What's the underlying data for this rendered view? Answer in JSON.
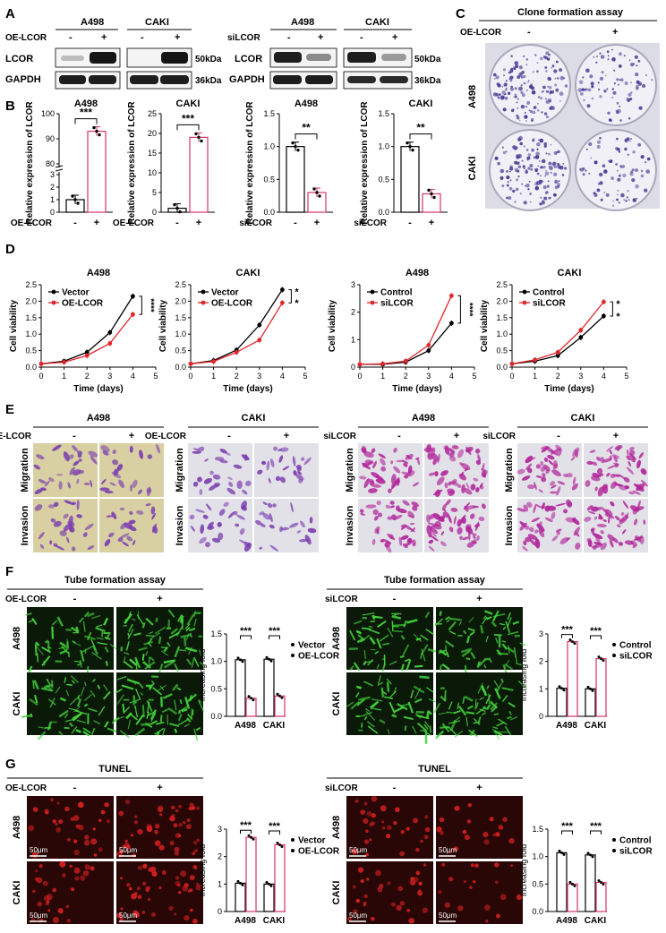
{
  "panel_letters": {
    "A": "A",
    "B": "B",
    "C": "C",
    "D": "D",
    "E": "E",
    "F": "F",
    "G": "G"
  },
  "panelA": {
    "left": {
      "cells": [
        "A498",
        "CAKI"
      ],
      "treatment": "OE-LCOR",
      "signs": [
        "-",
        "+",
        "-",
        "+"
      ],
      "rows": [
        "LCOR",
        "GAPDH"
      ],
      "sizes": [
        "50kDa",
        "36kDa"
      ]
    },
    "right": {
      "cells": [
        "A498",
        "CAKI"
      ],
      "treatment": "siLCOR",
      "signs": [
        "-",
        "+",
        "-",
        "+"
      ],
      "rows": [
        "LCOR",
        "GAPDH"
      ],
      "sizes": [
        "50kDa",
        "36kDa"
      ]
    }
  },
  "panelC": {
    "title": "Clone formation assay",
    "treatment": "OE-LCOR",
    "signs": [
      "-",
      "+"
    ],
    "rows": [
      "A498",
      "CAKI"
    ]
  },
  "panelE": {
    "groups": [
      {
        "cell": "A498",
        "treatment": "OE-LCOR",
        "signs": [
          "-",
          "+"
        ],
        "rows": [
          "Migration",
          "Invasion"
        ],
        "stain": "yellow"
      },
      {
        "cell": "CAKI",
        "treatment": "OE-LCOR",
        "signs": [
          "-",
          "+"
        ],
        "rows": [
          "Migration",
          "Invasion"
        ],
        "stain": "grey"
      },
      {
        "cell": "A498",
        "treatment": "siLCOR",
        "signs": [
          "-",
          "+"
        ],
        "rows": [
          "Migration",
          "Invasion"
        ],
        "stain": "grey"
      },
      {
        "cell": "CAKI",
        "treatment": "siLCOR",
        "signs": [
          "-",
          "+"
        ],
        "rows": [
          "Migration",
          "Invasion"
        ],
        "stain": "grey"
      }
    ]
  },
  "panelF": {
    "left": {
      "title": "Tube formation assay",
      "treatment": "OE-LCOR",
      "signs": [
        "-",
        "+"
      ],
      "rows": [
        "A498",
        "CAKI"
      ]
    },
    "right": {
      "title": "Tube formation assay",
      "treatment": "siLCOR",
      "signs": [
        "-",
        "+"
      ],
      "rows": [
        "A498",
        "CAKI"
      ]
    }
  },
  "panelG": {
    "left": {
      "title": "TUNEL",
      "treatment": "OE-LCOR",
      "signs": [
        "-",
        "+"
      ],
      "rows": [
        "A498",
        "CAKI"
      ],
      "scale": "50μm"
    },
    "right": {
      "title": "TUNEL",
      "treatment": "siLCOR",
      "signs": [
        "-",
        "+"
      ],
      "rows": [
        "A498",
        "CAKI"
      ],
      "scale": "50μm"
    }
  },
  "colors": {
    "control": "#000000",
    "treated": "#d6336c",
    "line_treated": "#e0262b",
    "green": "#43d43c",
    "red": "#d42020",
    "stain_purple": "#7b3fb0",
    "magenta": "#b0269a"
  },
  "chart_data": [
    {
      "id": "B1",
      "type": "bar",
      "title": "A498",
      "ylabel": "Relative expression of LCOR",
      "xlabel": "OE-LCOR",
      "categories": [
        "-",
        "+"
      ],
      "values": [
        1,
        93
      ],
      "ylim": [
        0,
        100
      ],
      "ticks": [
        "0",
        "1",
        "2",
        "3",
        "80",
        "90",
        "100"
      ],
      "sig": "***",
      "axis_break": true
    },
    {
      "id": "B2",
      "type": "bar",
      "title": "CAKI",
      "ylabel": "Relative expression of LCOR",
      "xlabel": "OE-LCOR",
      "categories": [
        "-",
        "+"
      ],
      "values": [
        1,
        19
      ],
      "ylim": [
        0,
        25
      ],
      "ticks": [
        "0",
        "5",
        "10",
        "15",
        "20",
        "25"
      ],
      "sig": "***"
    },
    {
      "id": "B3",
      "type": "bar",
      "title": "A498",
      "ylabel": "Relative expression of LCOR",
      "xlabel": "siLCOR",
      "categories": [
        "-",
        "+"
      ],
      "values": [
        1,
        0.3
      ],
      "ylim": [
        0,
        1.5
      ],
      "ticks": [
        "0.0",
        "0.5",
        "1.0",
        "1.5"
      ],
      "sig": "**"
    },
    {
      "id": "B4",
      "type": "bar",
      "title": "CAKI",
      "ylabel": "Relative expression of LCOR",
      "xlabel": "siLCOR",
      "categories": [
        "-",
        "+"
      ],
      "values": [
        1,
        0.28
      ],
      "ylim": [
        0,
        1.5
      ],
      "ticks": [
        "0.0",
        "0.5",
        "1.0",
        "1.5"
      ],
      "sig": "**"
    },
    {
      "id": "D1",
      "type": "line",
      "title": "A498",
      "xlabel": "Time (days)",
      "ylabel": "Cell viability",
      "x": [
        0,
        1,
        2,
        3,
        4
      ],
      "xlim": [
        0,
        5
      ],
      "ylim": [
        0,
        2.5
      ],
      "xticks": [
        "0",
        "1",
        "2",
        "3",
        "4",
        "5"
      ],
      "yticks": [
        "0.0",
        "0.5",
        "1.0",
        "1.5",
        "2.0",
        "2.5"
      ],
      "series": [
        {
          "name": "Vector",
          "values": [
            0.1,
            0.18,
            0.45,
            1.05,
            2.15
          ]
        },
        {
          "name": "OE-LCOR",
          "values": [
            0.1,
            0.15,
            0.35,
            0.72,
            1.6
          ]
        }
      ],
      "sig": [
        "****"
      ]
    },
    {
      "id": "D2",
      "type": "line",
      "title": "CAKI",
      "xlabel": "Time (days)",
      "ylabel": "Cell viability",
      "x": [
        0,
        1,
        2,
        3,
        4
      ],
      "xlim": [
        0,
        5
      ],
      "ylim": [
        0,
        2.5
      ],
      "xticks": [
        "0",
        "1",
        "2",
        "3",
        "4",
        "5"
      ],
      "yticks": [
        "0.0",
        "0.5",
        "1.0",
        "1.5",
        "2.0",
        "2.5"
      ],
      "series": [
        {
          "name": "Vector",
          "values": [
            0.1,
            0.2,
            0.52,
            1.28,
            2.35
          ]
        },
        {
          "name": "OE-LCOR",
          "values": [
            0.1,
            0.17,
            0.45,
            0.82,
            1.95
          ]
        }
      ],
      "sig": [
        "*",
        "*"
      ]
    },
    {
      "id": "D3",
      "type": "line",
      "title": "A498",
      "xlabel": "Time (days)",
      "ylabel": "Cell viability",
      "x": [
        0,
        1,
        2,
        3,
        4
      ],
      "xlim": [
        0,
        5
      ],
      "ylim": [
        0,
        3
      ],
      "xticks": [
        "0",
        "1",
        "2",
        "3",
        "4",
        "5"
      ],
      "yticks": [
        "0",
        "1",
        "2",
        "3"
      ],
      "series": [
        {
          "name": "Control",
          "values": [
            0.1,
            0.1,
            0.18,
            0.6,
            1.6
          ]
        },
        {
          "name": "siLCOR",
          "values": [
            0.1,
            0.12,
            0.22,
            0.8,
            2.6
          ]
        }
      ],
      "sig": [
        "****"
      ]
    },
    {
      "id": "D4",
      "type": "line",
      "title": "CAKI",
      "xlabel": "Time (days)",
      "ylabel": "Cell viability",
      "x": [
        0,
        1,
        2,
        3,
        4
      ],
      "xlim": [
        0,
        5
      ],
      "ylim": [
        0,
        2.5
      ],
      "xticks": [
        "0",
        "1",
        "2",
        "3",
        "4",
        "5"
      ],
      "yticks": [
        "0.0",
        "0.5",
        "1.0",
        "1.5",
        "2.0",
        "2.5"
      ],
      "series": [
        {
          "name": "Control",
          "values": [
            0.1,
            0.18,
            0.35,
            0.9,
            1.55
          ]
        },
        {
          "name": "siLCOR",
          "values": [
            0.1,
            0.22,
            0.45,
            1.12,
            1.98
          ]
        }
      ],
      "sig": [
        "*",
        "*"
      ]
    },
    {
      "id": "F1",
      "type": "bar",
      "ylabel": "Increasing fold",
      "categories": [
        "A498",
        "CAKI"
      ],
      "ylim": [
        0,
        1.5
      ],
      "yticks": [
        "0.0",
        "0.5",
        "1.0",
        "1.5"
      ],
      "series": [
        {
          "name": "Vector",
          "values": [
            1.03,
            1.04
          ]
        },
        {
          "name": "OE-LCOR",
          "values": [
            0.33,
            0.37
          ]
        }
      ],
      "sig": [
        "***",
        "***"
      ]
    },
    {
      "id": "F2",
      "type": "bar",
      "ylabel": "Increasing fold",
      "categories": [
        "A498",
        "CAKI"
      ],
      "ylim": [
        0,
        3
      ],
      "yticks": [
        "0",
        "1",
        "2",
        "3"
      ],
      "series": [
        {
          "name": "Control",
          "values": [
            1.02,
            1.0
          ]
        },
        {
          "name": "siLCOR",
          "values": [
            2.72,
            2.1
          ]
        }
      ],
      "sig": [
        "***",
        "***"
      ]
    },
    {
      "id": "G1",
      "type": "bar",
      "ylabel": "Increasing fold",
      "categories": [
        "A498",
        "CAKI"
      ],
      "ylim": [
        0,
        3
      ],
      "yticks": [
        "0",
        "1",
        "2",
        "3"
      ],
      "series": [
        {
          "name": "Vector",
          "values": [
            1.03,
            1.0
          ]
        },
        {
          "name": "OE-LCOR",
          "values": [
            2.7,
            2.43
          ]
        }
      ],
      "sig": [
        "***",
        "***"
      ]
    },
    {
      "id": "G2",
      "type": "bar",
      "ylabel": "Increasing fold",
      "categories": [
        "A498",
        "CAKI"
      ],
      "ylim": [
        0,
        1.5
      ],
      "yticks": [
        "0.0",
        "0.5",
        "1.0",
        "1.5"
      ],
      "series": [
        {
          "name": "Control",
          "values": [
            1.07,
            1.03
          ]
        },
        {
          "name": "siLCOR",
          "values": [
            0.5,
            0.53
          ]
        }
      ],
      "sig": [
        "***",
        "***"
      ]
    }
  ]
}
